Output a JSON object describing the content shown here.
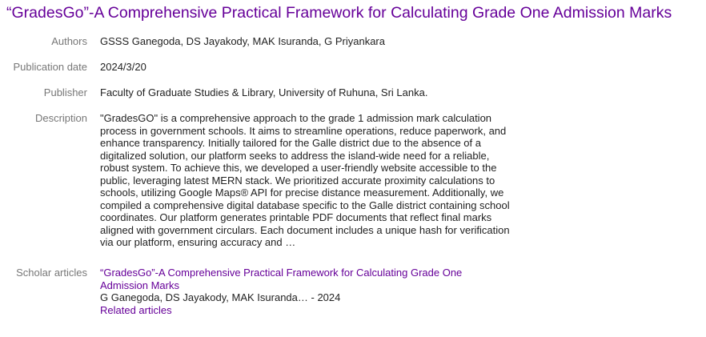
{
  "title": "“GradesGo”-A Comprehensive Practical Framework for Calculating Grade One Admission Marks",
  "fields": {
    "authors": {
      "label": "Authors",
      "value": "GSSS Ganegoda, DS Jayakody, MAK Isuranda, G Priyankara"
    },
    "publication_date": {
      "label": "Publication date",
      "value": "2024/3/20"
    },
    "publisher": {
      "label": "Publisher",
      "value": "Faculty of Graduate Studies & Library, University of Ruhuna, Sri Lanka."
    },
    "description": {
      "label": "Description",
      "value": "\"GradesGO\" is a comprehensive approach to the grade 1 admission mark calculation process in government schools. It aims to streamline operations, reduce paperwork, and enhance transparency. Initially tailored for the Galle district due to the absence of a digitalized solution, our platform seeks to address the island-wide need for a reliable, robust system. To achieve this, we developed a user-friendly website accessible to the public, leveraging latest MERN stack. We prioritized accurate proximity calculations to schools, utilizing Google Maps® API for precise distance measurement. Additionally, we compiled a comprehensive digital database specific to the Galle district containing school coordinates. Our platform generates printable PDF documents that reflect final marks aligned with government circulars. Each document includes a unique hash for verification via our platform, ensuring accuracy and …"
    },
    "scholar_articles": {
      "label": "Scholar articles",
      "article_title": "“GradesGo”-A Comprehensive Practical Framework for Calculating Grade One Admission Marks",
      "article_meta": "G Ganegoda, DS Jayakody, MAK Isuranda… - 2024",
      "related_label": "Related articles"
    }
  },
  "colors": {
    "link_visited": "#660099",
    "label": "#777777",
    "text": "#222222"
  }
}
